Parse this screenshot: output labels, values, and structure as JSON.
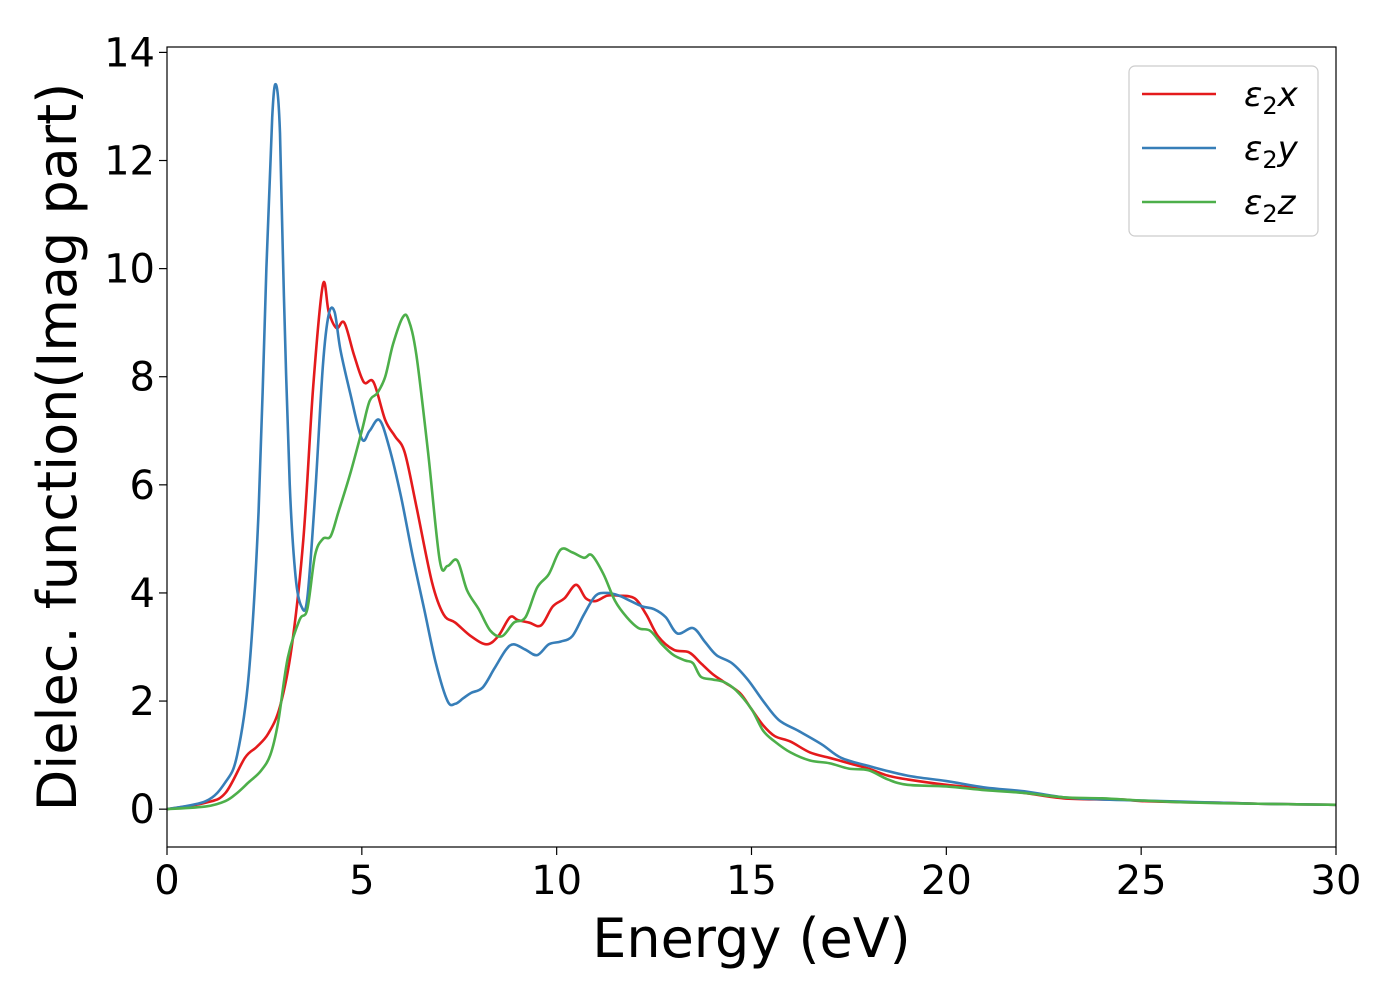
{
  "chart_data": {
    "type": "line",
    "xlabel": "Energy (eV)",
    "ylabel": "Dielec. function(Imag part)",
    "xlim": [
      0,
      30
    ],
    "ylim": [
      -0.7,
      14.1
    ],
    "xticks": [
      "0",
      "5",
      "10",
      "15",
      "20",
      "25",
      "30"
    ],
    "yticks": [
      "0",
      "2",
      "4",
      "6",
      "8",
      "10",
      "12",
      "14"
    ],
    "grid": false,
    "legend_position": "top-right",
    "series": [
      {
        "name": "ε2x",
        "legend": {
          "main": "ε",
          "sub": "2",
          "tail": "x"
        },
        "color": "#e41a1c",
        "x": [
          0,
          1,
          1.5,
          2,
          2.3,
          2.6,
          2.9,
          3.2,
          3.5,
          3.75,
          4.0,
          4.15,
          4.35,
          4.55,
          4.8,
          5.05,
          5.3,
          5.6,
          5.85,
          6.1,
          6.4,
          6.8,
          7.1,
          7.4,
          7.8,
          8.2,
          8.5,
          8.8,
          9.0,
          9.3,
          9.6,
          9.9,
          10.2,
          10.5,
          10.75,
          11.0,
          11.3,
          11.6,
          12.0,
          12.3,
          12.6,
          13.0,
          13.4,
          13.7,
          14.0,
          14.3,
          14.7,
          15.0,
          15.3,
          15.6,
          16.0,
          16.5,
          17.0,
          17.5,
          18.0,
          18.5,
          19.0,
          20.0,
          21.0,
          22.0,
          23.0,
          24.0,
          24.5,
          25.0,
          26.0,
          27.0,
          28.0,
          29.0,
          30.0
        ],
        "y": [
          0.0,
          0.12,
          0.3,
          0.95,
          1.15,
          1.4,
          1.9,
          3.0,
          5.0,
          7.8,
          9.7,
          9.2,
          8.9,
          9.0,
          8.4,
          7.9,
          7.9,
          7.2,
          6.9,
          6.6,
          5.6,
          4.2,
          3.6,
          3.45,
          3.2,
          3.05,
          3.2,
          3.55,
          3.5,
          3.45,
          3.4,
          3.75,
          3.9,
          4.15,
          3.9,
          3.85,
          3.95,
          3.95,
          3.9,
          3.6,
          3.2,
          2.95,
          2.9,
          2.7,
          2.5,
          2.35,
          2.15,
          1.85,
          1.55,
          1.35,
          1.25,
          1.05,
          0.95,
          0.85,
          0.75,
          0.62,
          0.55,
          0.45,
          0.38,
          0.3,
          0.2,
          0.18,
          0.18,
          0.15,
          0.13,
          0.12,
          0.1,
          0.09,
          0.08
        ]
      },
      {
        "name": "ε2y",
        "legend": {
          "main": "ε",
          "sub": "2",
          "tail": "y"
        },
        "color": "#377eb8",
        "x": [
          0,
          1,
          1.5,
          1.8,
          2.1,
          2.35,
          2.55,
          2.7,
          2.8,
          2.9,
          3.0,
          3.15,
          3.3,
          3.45,
          3.6,
          3.8,
          4.0,
          4.15,
          4.3,
          4.45,
          4.7,
          5.0,
          5.2,
          5.45,
          5.7,
          6.0,
          6.3,
          6.6,
          6.9,
          7.2,
          7.4,
          7.6,
          7.8,
          8.1,
          8.4,
          8.7,
          8.9,
          9.2,
          9.5,
          9.8,
          10.1,
          10.4,
          10.7,
          11.0,
          11.3,
          11.6,
          11.9,
          12.2,
          12.5,
          12.8,
          13.1,
          13.5,
          13.8,
          14.1,
          14.5,
          14.9,
          15.3,
          15.7,
          16.2,
          16.8,
          17.3,
          18.0,
          19.0,
          20.0,
          21.0,
          22.0,
          23.0,
          24.0,
          25.0,
          26.0,
          27.0,
          28.0,
          29.0,
          30.0
        ],
        "y": [
          0.0,
          0.15,
          0.5,
          1.0,
          2.5,
          5.5,
          10.0,
          12.8,
          13.4,
          12.5,
          9.5,
          6.0,
          4.3,
          3.75,
          3.9,
          5.8,
          8.2,
          9.15,
          9.2,
          8.5,
          7.7,
          6.85,
          7.0,
          7.2,
          6.7,
          5.8,
          4.7,
          3.7,
          2.7,
          2.0,
          1.95,
          2.05,
          2.15,
          2.25,
          2.6,
          2.95,
          3.05,
          2.95,
          2.85,
          3.05,
          3.1,
          3.2,
          3.6,
          3.95,
          4.0,
          3.95,
          3.85,
          3.75,
          3.7,
          3.55,
          3.25,
          3.35,
          3.1,
          2.85,
          2.7,
          2.4,
          2.0,
          1.65,
          1.45,
          1.2,
          0.95,
          0.8,
          0.62,
          0.52,
          0.4,
          0.33,
          0.22,
          0.18,
          0.16,
          0.14,
          0.12,
          0.1,
          0.09,
          0.08
        ]
      },
      {
        "name": "ε2z",
        "legend": {
          "main": "ε",
          "sub": "2",
          "tail": "z"
        },
        "color": "#4daf4a",
        "x": [
          0,
          1,
          1.5,
          1.8,
          2.1,
          2.4,
          2.65,
          2.85,
          3.1,
          3.4,
          3.6,
          3.8,
          4.0,
          4.2,
          4.4,
          4.7,
          5.0,
          5.2,
          5.4,
          5.6,
          5.8,
          6.05,
          6.2,
          6.4,
          6.7,
          7.0,
          7.2,
          7.45,
          7.7,
          8.0,
          8.3,
          8.6,
          8.9,
          9.2,
          9.5,
          9.8,
          10.1,
          10.4,
          10.7,
          10.9,
          11.2,
          11.5,
          11.8,
          12.1,
          12.4,
          12.7,
          13.0,
          13.3,
          13.5,
          13.7,
          14.0,
          14.3,
          14.6,
          15.0,
          15.3,
          15.6,
          16.0,
          16.5,
          17.0,
          17.5,
          18.0,
          18.5,
          19.0,
          20.0,
          21.0,
          22.0,
          23.0,
          24.0,
          25.0,
          26.0,
          27.0,
          28.0,
          29.0,
          30.0
        ],
        "y": [
          0.0,
          0.05,
          0.15,
          0.3,
          0.5,
          0.7,
          1.0,
          1.6,
          2.8,
          3.5,
          3.7,
          4.7,
          5.0,
          5.05,
          5.5,
          6.2,
          7.0,
          7.55,
          7.7,
          8.0,
          8.6,
          9.1,
          9.05,
          8.4,
          6.6,
          4.6,
          4.5,
          4.6,
          4.05,
          3.7,
          3.3,
          3.2,
          3.45,
          3.55,
          4.1,
          4.35,
          4.8,
          4.75,
          4.65,
          4.7,
          4.35,
          3.85,
          3.55,
          3.35,
          3.3,
          3.05,
          2.85,
          2.75,
          2.7,
          2.45,
          2.4,
          2.35,
          2.2,
          1.85,
          1.45,
          1.25,
          1.05,
          0.9,
          0.85,
          0.75,
          0.72,
          0.55,
          0.45,
          0.42,
          0.35,
          0.3,
          0.22,
          0.2,
          0.16,
          0.13,
          0.11,
          0.1,
          0.09,
          0.08
        ]
      }
    ]
  }
}
